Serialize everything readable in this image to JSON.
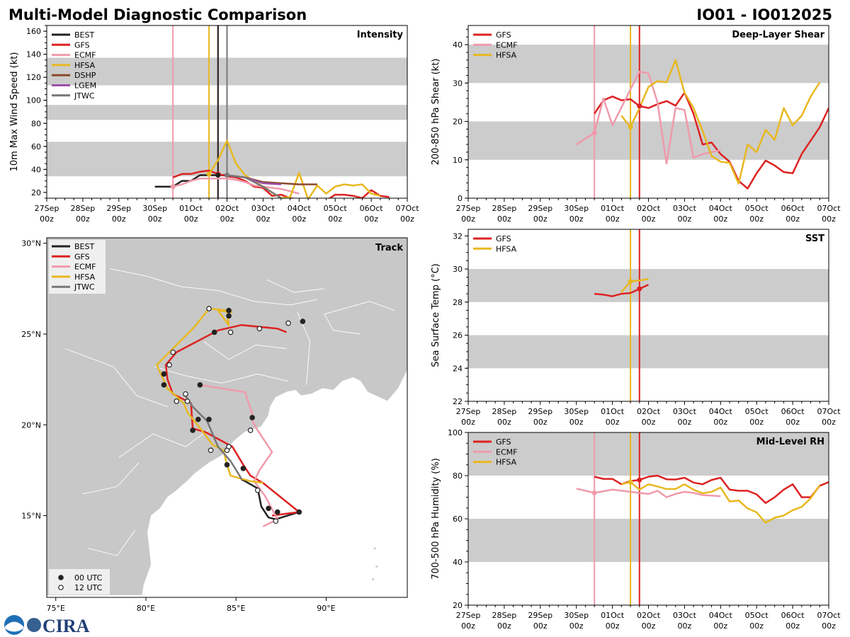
{
  "header": {
    "title": "Multi-Model Diagnostic Comparison",
    "storm_id": "IO01 - IO012025"
  },
  "colors": {
    "BEST": "#222222",
    "GFS": "#dd2222",
    "ECMF": "#f09aab",
    "HFSA": "#e8b820",
    "DSHP": "#8b4a2b",
    "LGEM": "#9b4fa8",
    "JTWC": "#777777",
    "band": "#cccccc",
    "land": "#c8c8c8"
  },
  "logo": {
    "text": "CIRA"
  },
  "time_axis": {
    "labels": [
      [
        "27Sep",
        "00z"
      ],
      [
        "28Sep",
        "00z"
      ],
      [
        "29Sep",
        "00z"
      ],
      [
        "30Sep",
        "00z"
      ],
      [
        "01Oct",
        "00z"
      ],
      [
        "02Oct",
        "00z"
      ],
      [
        "03Oct",
        "00z"
      ],
      [
        "04Oct",
        "00z"
      ],
      [
        "05Oct",
        "00z"
      ],
      [
        "06Oct",
        "00z"
      ],
      [
        "07Oct",
        "00z"
      ]
    ],
    "range_days": [
      0,
      10
    ]
  },
  "chart_data": [
    {
      "id": "intensity",
      "type": "line",
      "title": "Intensity",
      "ylabel": "10m Max Wind Speed (kt)",
      "ylim": [
        15,
        165
      ],
      "yticks": [
        20,
        40,
        60,
        80,
        100,
        120,
        140,
        160
      ],
      "bands": [
        [
          34,
          64
        ],
        [
          83,
          96
        ],
        [
          113,
          137
        ]
      ],
      "legend": [
        "BEST",
        "GFS",
        "ECMF",
        "HFSA",
        "DSHP",
        "LGEM",
        "JTWC"
      ],
      "vlines": [
        {
          "x": 3.5,
          "model": "ECMF"
        },
        {
          "x": 4.5,
          "model": "HFSA"
        },
        {
          "x": 4.75,
          "model": "GFS"
        },
        {
          "x": 4.75,
          "model": "BEST"
        },
        {
          "x": 5.0,
          "model": "JTWC"
        }
      ],
      "series": [
        {
          "name": "BEST",
          "x": [
            3.0,
            3.5,
            3.75,
            4.0,
            4.25,
            4.5,
            4.75,
            5.0
          ],
          "y": [
            25,
            25,
            30,
            30,
            35,
            35,
            35,
            35
          ]
        },
        {
          "name": "GFS",
          "x": [
            3.5,
            3.75,
            4.0,
            4.25,
            4.5,
            4.75,
            5.0,
            5.25,
            5.5,
            5.75,
            6.0,
            6.25,
            6.5,
            6.75,
            7.0,
            7.25,
            7.5,
            7.75,
            8.0,
            8.25,
            8.5,
            8.75,
            9.0,
            9.25,
            9.5
          ],
          "y": [
            33,
            36,
            36,
            38,
            39,
            36,
            34,
            33,
            30,
            25,
            24,
            17,
            18,
            15,
            14,
            13,
            13,
            13,
            18,
            18,
            17,
            15,
            22,
            17,
            16
          ]
        },
        {
          "name": "ECMF",
          "x": [
            3.5,
            3.75,
            4.0,
            4.25,
            4.5,
            4.75,
            5.0,
            5.25,
            5.5,
            5.75,
            6.0,
            6.25,
            6.5,
            6.75,
            7.0
          ],
          "y": [
            25,
            27,
            30,
            32,
            32,
            32,
            32,
            31,
            29,
            26,
            25,
            24,
            23,
            21,
            19
          ]
        },
        {
          "name": "HFSA",
          "x": [
            4.5,
            4.75,
            5.0,
            5.25,
            5.5,
            5.75,
            6.0,
            6.25,
            6.5,
            6.75,
            7.0,
            7.25,
            7.5,
            7.75,
            8.0,
            8.25,
            8.5,
            8.75,
            9.0,
            9.25
          ],
          "y": [
            36,
            48,
            65,
            45,
            35,
            30,
            25,
            20,
            15,
            16,
            37,
            14,
            26,
            19,
            25,
            27,
            26,
            27,
            19,
            17
          ]
        },
        {
          "name": "DSHP",
          "x": [
            5.0,
            5.5,
            6.0,
            6.5,
            7.0,
            7.5
          ],
          "y": [
            35,
            33,
            29,
            28,
            27,
            27
          ]
        },
        {
          "name": "LGEM",
          "x": [
            5.0,
            5.5,
            6.0,
            6.5
          ],
          "y": [
            35,
            33,
            28,
            27
          ]
        },
        {
          "name": "JTWC",
          "x": [
            5.0,
            5.5,
            6.0,
            6.5
          ],
          "y": [
            35,
            33,
            25,
            15
          ]
        }
      ]
    },
    {
      "id": "shear",
      "type": "line",
      "title": "Deep-Layer Shear",
      "ylabel": "200-850 hPa Shear (kt)",
      "ylim": [
        0,
        45
      ],
      "yticks": [
        0,
        10,
        20,
        30,
        40
      ],
      "bands": [
        [
          10,
          20
        ],
        [
          30,
          40
        ]
      ],
      "legend": [
        "GFS",
        "ECMF",
        "HFSA"
      ],
      "vlines": [
        {
          "x": 3.5,
          "model": "ECMF"
        },
        {
          "x": 4.5,
          "model": "HFSA"
        },
        {
          "x": 4.75,
          "model": "GFS"
        }
      ],
      "series": [
        {
          "name": "GFS",
          "x": [
            3.5,
            3.75,
            4.0,
            4.25,
            4.5,
            4.75,
            5.0,
            5.25,
            5.5,
            5.75,
            6.0,
            6.25,
            6.5,
            6.75,
            7.0,
            7.25,
            7.5,
            7.75,
            8.0,
            8.25,
            8.5,
            8.75,
            9.0,
            9.25,
            9.5,
            9.75,
            10.0
          ],
          "y": [
            22,
            25.5,
            26.5,
            25.5,
            25.8,
            24,
            23.5,
            24.5,
            25.3,
            24.1,
            27.5,
            22,
            14,
            14.5,
            11.5,
            9.5,
            4.5,
            2.5,
            6.5,
            9.8,
            8.5,
            6.8,
            6.5,
            11.5,
            15,
            18.5,
            23.5
          ]
        },
        {
          "name": "ECMF",
          "x": [
            3.0,
            3.5,
            3.75,
            4.0,
            4.75,
            5.0,
            5.25,
            5.5,
            5.75,
            6.0,
            6.25,
            6.5,
            7.0
          ],
          "y": [
            14,
            17,
            26,
            19,
            33,
            32.5,
            25,
            9,
            23.5,
            23,
            10.5,
            11.5,
            12.5
          ]
        },
        {
          "name": "HFSA",
          "x": [
            4.25,
            4.5,
            4.75,
            5.0,
            5.25,
            5.5,
            5.75,
            6.0,
            6.25,
            6.5,
            6.75,
            7.0,
            7.25,
            7.5,
            7.75,
            8.0,
            8.25,
            8.5,
            8.75,
            9.0,
            9.25,
            9.5,
            9.75
          ],
          "y": [
            21.5,
            18.5,
            23.5,
            29,
            30.5,
            30.2,
            36,
            27.5,
            23.5,
            17.5,
            11,
            9.5,
            9.2,
            3.8,
            14,
            12,
            17.8,
            15.2,
            23.5,
            19,
            21.5,
            26.5,
            30.2
          ]
        }
      ]
    },
    {
      "id": "sst",
      "type": "line",
      "title": "SST",
      "ylabel": "Sea Surface Temp (°C)",
      "ylim": [
        22,
        32.4
      ],
      "yticks": [
        22,
        24,
        26,
        28,
        30,
        32
      ],
      "bands": [
        [
          24,
          26
        ],
        [
          28,
          30
        ]
      ],
      "legend": [
        "GFS",
        "HFSA"
      ],
      "vlines": [
        {
          "x": 4.5,
          "model": "HFSA"
        },
        {
          "x": 4.75,
          "model": "GFS"
        }
      ],
      "series": [
        {
          "name": "GFS",
          "x": [
            3.5,
            3.75,
            4.0,
            4.25,
            4.5,
            4.75,
            5.0
          ],
          "y": [
            28.5,
            28.45,
            28.35,
            28.5,
            28.55,
            28.8,
            29.05
          ]
        },
        {
          "name": "HFSA",
          "x": [
            4.25,
            4.5,
            4.75,
            5.0
          ],
          "y": [
            28.6,
            29.25,
            29.3,
            29.4
          ]
        }
      ]
    },
    {
      "id": "rh",
      "type": "line",
      "title": "Mid-Level RH",
      "ylabel": "700-500 hPa Humidity (%)",
      "ylim": [
        20,
        100
      ],
      "yticks": [
        20,
        40,
        60,
        80,
        100
      ],
      "bands": [
        [
          40,
          60
        ],
        [
          80,
          100
        ]
      ],
      "legend": [
        "GFS",
        "ECMF",
        "HFSA"
      ],
      "vlines": [
        {
          "x": 3.5,
          "model": "ECMF"
        },
        {
          "x": 4.5,
          "model": "HFSA"
        },
        {
          "x": 4.75,
          "model": "GFS"
        }
      ],
      "series": [
        {
          "name": "GFS",
          "x": [
            3.5,
            3.75,
            4.0,
            4.25,
            4.5,
            4.75,
            5.0,
            5.25,
            5.5,
            5.75,
            6.0,
            6.25,
            6.5,
            6.75,
            7.0,
            7.25,
            7.5,
            7.75,
            8.0,
            8.25,
            8.5,
            8.75,
            9.0,
            9.25,
            9.5,
            9.75,
            10.0
          ],
          "y": [
            79.5,
            78.5,
            78.5,
            76,
            77.5,
            78,
            79.5,
            80,
            78.3,
            78.2,
            79,
            76.8,
            76,
            78,
            79,
            73.5,
            73,
            73,
            71.3,
            67.3,
            70,
            73.5,
            76,
            70,
            70,
            75.3,
            77
          ]
        },
        {
          "name": "ECMF",
          "x": [
            3.0,
            3.5,
            4.0,
            4.75,
            5.0,
            5.25,
            5.5,
            5.75,
            6.0,
            6.25,
            6.5,
            7.0
          ],
          "y": [
            74,
            72,
            73.5,
            72,
            71.5,
            73,
            70,
            71.5,
            72.5,
            72,
            71,
            70.5
          ]
        },
        {
          "name": "HFSA",
          "x": [
            4.25,
            4.5,
            4.75,
            5.0,
            5.25,
            5.5,
            5.75,
            6.0,
            6.25,
            6.5,
            6.75,
            7.0,
            7.25,
            7.5,
            7.75,
            8.0,
            8.25,
            8.5,
            8.75,
            9.0,
            9.25,
            9.5,
            9.75
          ],
          "y": [
            76,
            77,
            73.5,
            76,
            75,
            73.8,
            73.8,
            76,
            73.5,
            71.8,
            72.5,
            74.5,
            68,
            68.5,
            64.8,
            63,
            58.2,
            60.5,
            61.5,
            64,
            65.5,
            69.5,
            75.5
          ]
        }
      ]
    },
    {
      "id": "track",
      "type": "scatter",
      "title": "Track",
      "xlim": [
        74.5,
        94.5
      ],
      "ylim": [
        10.5,
        30.3
      ],
      "xticks": [
        {
          "v": 75,
          "label": "75°E"
        },
        {
          "v": 80,
          "label": "80°E"
        },
        {
          "v": 85,
          "label": "85°E"
        },
        {
          "v": 90,
          "label": "90°E"
        }
      ],
      "yticks": [
        {
          "v": 15,
          "label": "15°N"
        },
        {
          "v": 20,
          "label": "20°N"
        },
        {
          "v": 25,
          "label": "25°N"
        },
        {
          "v": 30,
          "label": "30°N"
        }
      ],
      "legend": [
        "BEST",
        "GFS",
        "ECMF",
        "HFSA",
        "JTWC"
      ],
      "marker_legend": [
        "00 UTC",
        "12 UTC"
      ],
      "series": [
        {
          "name": "BEST",
          "lon": [
            88.5,
            87.2,
            86.8,
            86.4,
            86.2,
            85.5,
            85.3
          ],
          "lat": [
            15.2,
            14.8,
            14.9,
            15.5,
            16.5,
            16.9,
            17.0
          ]
        },
        {
          "name": "GFS",
          "lon": [
            87.0,
            88.5,
            86.5,
            85.8,
            85.4,
            84.8,
            83.3,
            82.6,
            82.5,
            81.5,
            81.2,
            81.1,
            81.7,
            84.0,
            85.3,
            87.3,
            87.8
          ],
          "lat": [
            15.0,
            15.2,
            16.8,
            17.2,
            17.8,
            18.8,
            19.6,
            19.8,
            21.2,
            21.7,
            22.5,
            23.3,
            24.0,
            25.2,
            25.5,
            25.3,
            25.1
          ]
        },
        {
          "name": "ECMF",
          "lon": [
            86.5,
            87.3,
            86.6,
            86.0,
            86.3,
            87.0,
            86.2,
            85.8,
            85.9,
            85.5,
            83.0
          ],
          "lat": [
            14.4,
            14.8,
            16.1,
            16.9,
            17.5,
            18.5,
            19.7,
            20.4,
            20.6,
            21.8,
            22.2
          ]
        },
        {
          "name": "HFSA",
          "lon": [
            86.5,
            85.8,
            84.7,
            84.5,
            84.3,
            83.7,
            83.1,
            82.3,
            82.1,
            81.2,
            80.6,
            81.4,
            82.7,
            83.5,
            84.5,
            84.6,
            84.0,
            84.8
          ],
          "lat": [
            16.8,
            16.9,
            17.2,
            17.8,
            18.6,
            18.9,
            19.7,
            20.7,
            21.2,
            22.0,
            23.3,
            24.1,
            25.4,
            26.4,
            26.3,
            25.5,
            26.3,
            26.2
          ]
        },
        {
          "name": "JTWC",
          "lon": [
            85.3,
            85.2,
            84.7,
            84.0,
            83.4,
            82.6,
            82.2
          ],
          "lat": [
            17.0,
            17.2,
            18.0,
            18.8,
            20.2,
            21.0,
            21.6
          ]
        }
      ],
      "markers_00": [
        {
          "lon": 88.5,
          "lat": 15.2
        },
        {
          "lon": 87.3,
          "lat": 15.2
        },
        {
          "lon": 86.8,
          "lat": 15.4
        },
        {
          "lon": 85.4,
          "lat": 17.6
        },
        {
          "lon": 84.5,
          "lat": 17.8
        },
        {
          "lon": 83.5,
          "lat": 20.3
        },
        {
          "lon": 82.9,
          "lat": 20.3
        },
        {
          "lon": 82.6,
          "lat": 19.7
        },
        {
          "lon": 81.0,
          "lat": 22.2
        },
        {
          "lon": 81.0,
          "lat": 22.8
        },
        {
          "lon": 83.0,
          "lat": 22.2
        },
        {
          "lon": 85.9,
          "lat": 20.4
        },
        {
          "lon": 83.8,
          "lat": 25.1
        },
        {
          "lon": 84.6,
          "lat": 26.0
        },
        {
          "lon": 84.6,
          "lat": 26.3
        },
        {
          "lon": 88.7,
          "lat": 25.7
        }
      ],
      "markers_12": [
        {
          "lon": 87.2,
          "lat": 14.7
        },
        {
          "lon": 86.2,
          "lat": 16.4
        },
        {
          "lon": 84.5,
          "lat": 18.6
        },
        {
          "lon": 84.6,
          "lat": 18.8
        },
        {
          "lon": 83.6,
          "lat": 18.6
        },
        {
          "lon": 85.8,
          "lat": 19.7
        },
        {
          "lon": 82.2,
          "lat": 21.7
        },
        {
          "lon": 82.3,
          "lat": 21.3
        },
        {
          "lon": 81.7,
          "lat": 21.3
        },
        {
          "lon": 81.3,
          "lat": 23.3
        },
        {
          "lon": 81.5,
          "lat": 24.0
        },
        {
          "lon": 83.5,
          "lat": 26.4
        },
        {
          "lon": 84.7,
          "lat": 25.1
        },
        {
          "lon": 86.3,
          "lat": 25.3
        },
        {
          "lon": 87.9,
          "lat": 25.6
        }
      ]
    }
  ]
}
